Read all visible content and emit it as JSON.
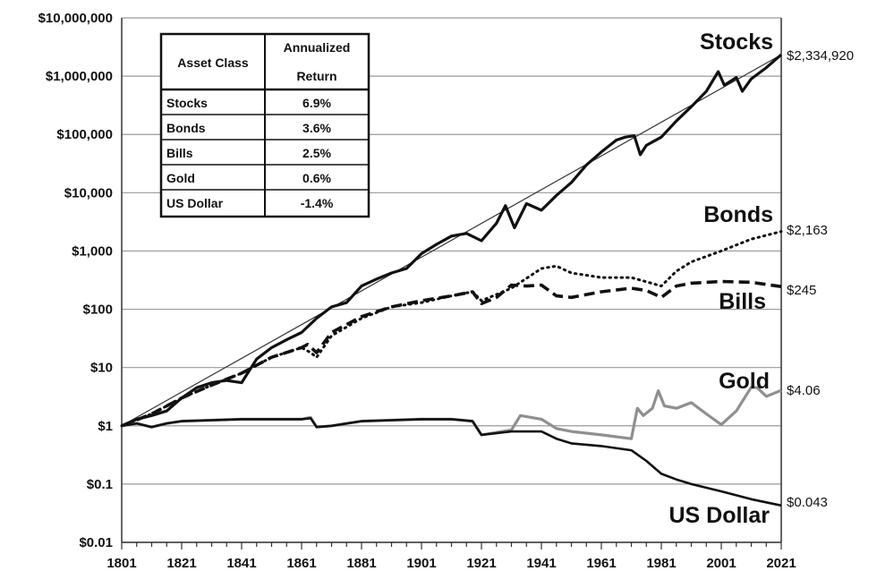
{
  "chart_data": {
    "type": "line",
    "yscale": "log",
    "xlim": [
      1801,
      2021
    ],
    "ylim": [
      0.01,
      10000000
    ],
    "grid": "horizontal",
    "x_ticks": [
      1801,
      1821,
      1841,
      1861,
      1881,
      1901,
      1921,
      1941,
      1961,
      1981,
      2001,
      2021
    ],
    "y_ticks": [
      {
        "value": 10000000,
        "label": "$10,000,000"
      },
      {
        "value": 1000000,
        "label": "$1,000,000"
      },
      {
        "value": 100000,
        "label": "$100,000"
      },
      {
        "value": 10000,
        "label": "$10,000"
      },
      {
        "value": 1000,
        "label": "$1,000"
      },
      {
        "value": 100,
        "label": "$100"
      },
      {
        "value": 10,
        "label": "$10"
      },
      {
        "value": 1,
        "label": "$1"
      },
      {
        "value": 0.1,
        "label": "$0.1"
      },
      {
        "value": 0.01,
        "label": "$0.01"
      }
    ],
    "trend_line": {
      "x": [
        1801,
        2021
      ],
      "y": [
        1,
        2334920
      ]
    },
    "series": [
      {
        "name": "Stocks",
        "color": "#111111",
        "style": "solid-thick",
        "end_label": "$2,334,920",
        "points": [
          [
            1801,
            1
          ],
          [
            1806,
            1.3
          ],
          [
            1811,
            1.5
          ],
          [
            1816,
            1.8
          ],
          [
            1821,
            3
          ],
          [
            1826,
            4.5
          ],
          [
            1831,
            5.5
          ],
          [
            1836,
            6
          ],
          [
            1841,
            5.5
          ],
          [
            1843,
            8
          ],
          [
            1846,
            14
          ],
          [
            1851,
            22
          ],
          [
            1856,
            30
          ],
          [
            1861,
            40
          ],
          [
            1866,
            70
          ],
          [
            1871,
            110
          ],
          [
            1876,
            130
          ],
          [
            1881,
            250
          ],
          [
            1886,
            330
          ],
          [
            1891,
            420
          ],
          [
            1896,
            500
          ],
          [
            1901,
            900
          ],
          [
            1906,
            1300
          ],
          [
            1911,
            1800
          ],
          [
            1916,
            2000
          ],
          [
            1921,
            1500
          ],
          [
            1926,
            3000
          ],
          [
            1929,
            6000
          ],
          [
            1932,
            2500
          ],
          [
            1936,
            6500
          ],
          [
            1941,
            5000
          ],
          [
            1946,
            9000
          ],
          [
            1951,
            15000
          ],
          [
            1956,
            30000
          ],
          [
            1961,
            50000
          ],
          [
            1966,
            80000
          ],
          [
            1969,
            90000
          ],
          [
            1972,
            95000
          ],
          [
            1974,
            45000
          ],
          [
            1976,
            65000
          ],
          [
            1981,
            90000
          ],
          [
            1986,
            170000
          ],
          [
            1991,
            300000
          ],
          [
            1996,
            550000
          ],
          [
            2000,
            1200000
          ],
          [
            2002,
            700000
          ],
          [
            2006,
            950000
          ],
          [
            2008,
            550000
          ],
          [
            2011,
            900000
          ],
          [
            2016,
            1400000
          ],
          [
            2021,
            2334920
          ]
        ]
      },
      {
        "name": "Bonds",
        "color": "#111111",
        "style": "dotted",
        "end_label": "$2,163",
        "points": [
          [
            1801,
            1
          ],
          [
            1811,
            1.6
          ],
          [
            1821,
            3
          ],
          [
            1831,
            5
          ],
          [
            1841,
            8
          ],
          [
            1851,
            15
          ],
          [
            1861,
            22
          ],
          [
            1864,
            18
          ],
          [
            1866,
            15
          ],
          [
            1871,
            35
          ],
          [
            1881,
            70
          ],
          [
            1891,
            110
          ],
          [
            1901,
            130
          ],
          [
            1911,
            170
          ],
          [
            1918,
            200
          ],
          [
            1921,
            140
          ],
          [
            1931,
            230
          ],
          [
            1941,
            500
          ],
          [
            1946,
            550
          ],
          [
            1951,
            420
          ],
          [
            1961,
            350
          ],
          [
            1971,
            350
          ],
          [
            1981,
            250
          ],
          [
            1986,
            450
          ],
          [
            1991,
            650
          ],
          [
            2001,
            1000
          ],
          [
            2011,
            1600
          ],
          [
            2021,
            2163
          ]
        ]
      },
      {
        "name": "Bills",
        "color": "#111111",
        "style": "dashed",
        "end_label": "$245",
        "points": [
          [
            1801,
            1
          ],
          [
            1811,
            1.6
          ],
          [
            1821,
            3
          ],
          [
            1831,
            5
          ],
          [
            1841,
            8
          ],
          [
            1851,
            15
          ],
          [
            1861,
            22
          ],
          [
            1863,
            25
          ],
          [
            1866,
            18
          ],
          [
            1871,
            40
          ],
          [
            1881,
            75
          ],
          [
            1891,
            110
          ],
          [
            1901,
            140
          ],
          [
            1911,
            170
          ],
          [
            1918,
            200
          ],
          [
            1921,
            125
          ],
          [
            1926,
            160
          ],
          [
            1931,
            260
          ],
          [
            1936,
            250
          ],
          [
            1941,
            260
          ],
          [
            1946,
            170
          ],
          [
            1951,
            160
          ],
          [
            1961,
            200
          ],
          [
            1971,
            230
          ],
          [
            1976,
            210
          ],
          [
            1981,
            160
          ],
          [
            1986,
            250
          ],
          [
            1991,
            280
          ],
          [
            2001,
            300
          ],
          [
            2011,
            290
          ],
          [
            2021,
            245
          ]
        ]
      },
      {
        "name": "Gold",
        "color": "#8f8f8f",
        "style": "solid-gray",
        "end_label": "$4.06",
        "points": [
          [
            1801,
            1
          ],
          [
            1806,
            1.1
          ],
          [
            1811,
            0.95
          ],
          [
            1816,
            1.1
          ],
          [
            1821,
            1.2
          ],
          [
            1831,
            1.25
          ],
          [
            1841,
            1.3
          ],
          [
            1851,
            1.3
          ],
          [
            1861,
            1.3
          ],
          [
            1864,
            1.4
          ],
          [
            1866,
            0.95
          ],
          [
            1871,
            1.0
          ],
          [
            1881,
            1.2
          ],
          [
            1891,
            1.25
          ],
          [
            1901,
            1.3
          ],
          [
            1911,
            1.3
          ],
          [
            1918,
            1.2
          ],
          [
            1921,
            0.7
          ],
          [
            1931,
            0.85
          ],
          [
            1934,
            1.5
          ],
          [
            1941,
            1.3
          ],
          [
            1946,
            0.9
          ],
          [
            1951,
            0.8
          ],
          [
            1961,
            0.7
          ],
          [
            1971,
            0.6
          ],
          [
            1973,
            2
          ],
          [
            1975,
            1.5
          ],
          [
            1978,
            2
          ],
          [
            1980,
            4
          ],
          [
            1982,
            2.2
          ],
          [
            1986,
            2
          ],
          [
            1991,
            2.5
          ],
          [
            1996,
            1.6
          ],
          [
            2001,
            1.05
          ],
          [
            2006,
            1.8
          ],
          [
            2011,
            4.6
          ],
          [
            2013,
            4.5
          ],
          [
            2016,
            3.2
          ],
          [
            2021,
            4.06
          ]
        ]
      },
      {
        "name": "US Dollar",
        "color": "#111111",
        "style": "solid",
        "end_label": "$0.043",
        "points": [
          [
            1801,
            1
          ],
          [
            1806,
            1.1
          ],
          [
            1811,
            0.95
          ],
          [
            1816,
            1.1
          ],
          [
            1821,
            1.2
          ],
          [
            1831,
            1.25
          ],
          [
            1841,
            1.3
          ],
          [
            1851,
            1.3
          ],
          [
            1861,
            1.3
          ],
          [
            1864,
            1.35
          ],
          [
            1866,
            0.95
          ],
          [
            1871,
            1.0
          ],
          [
            1881,
            1.2
          ],
          [
            1891,
            1.25
          ],
          [
            1901,
            1.3
          ],
          [
            1911,
            1.3
          ],
          [
            1918,
            1.2
          ],
          [
            1921,
            0.7
          ],
          [
            1931,
            0.8
          ],
          [
            1941,
            0.8
          ],
          [
            1946,
            0.6
          ],
          [
            1951,
            0.5
          ],
          [
            1961,
            0.45
          ],
          [
            1971,
            0.38
          ],
          [
            1976,
            0.25
          ],
          [
            1981,
            0.15
          ],
          [
            1986,
            0.12
          ],
          [
            1991,
            0.1
          ],
          [
            2001,
            0.075
          ],
          [
            2011,
            0.055
          ],
          [
            2021,
            0.043
          ]
        ]
      }
    ],
    "table": {
      "headers": [
        "Asset Class",
        "Annualized Return"
      ],
      "rows": [
        [
          "Stocks",
          "6.9%"
        ],
        [
          "Bonds",
          "3.6%"
        ],
        [
          "Bills",
          "2.5%"
        ],
        [
          "Gold",
          "0.6%"
        ],
        [
          "US Dollar",
          "-1.4%"
        ]
      ]
    }
  }
}
